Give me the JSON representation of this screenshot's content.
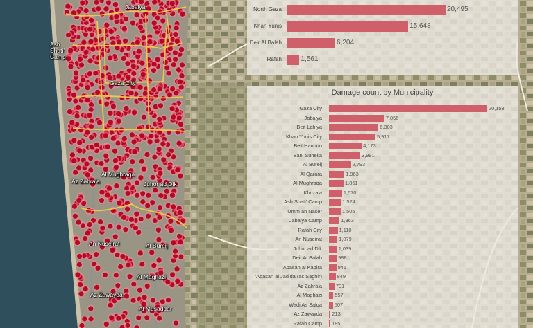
{
  "map": {
    "place_labels": [
      {
        "name": "Jabalya"
      },
      {
        "name": "Ash Shati' Camp"
      },
      {
        "name": "Gaza City"
      },
      {
        "name": "Al Mughraqa"
      },
      {
        "name": "Az Zahra'a"
      },
      {
        "name": "Juhor ad Dik"
      },
      {
        "name": "An Nuseirat"
      },
      {
        "name": "Al Bureij"
      },
      {
        "name": "Al Maghazi"
      },
      {
        "name": "Az Zawayda"
      },
      {
        "name": "Al Musaddar"
      }
    ],
    "colors": {
      "damage_dot": "#b0001a",
      "damage_halo": "#f08a9a",
      "boundary": "#f2c94c",
      "sea": "#2f4f5c"
    }
  },
  "chart_data": [
    {
      "type": "bar",
      "title": "",
      "categories": [
        "North Gaza",
        "Khan Yunis",
        "Deir Al Balah",
        "Rafah"
      ],
      "values": [
        20495,
        15648,
        6204,
        1561
      ],
      "value_labels": [
        "20,495",
        "15,648",
        "6,204",
        "1,561"
      ],
      "orientation": "horizontal",
      "bar_color": "#cf5f68"
    },
    {
      "type": "bar",
      "title": "Damage count by Municipality",
      "categories": [
        "Gaza City",
        "Jabalya",
        "Beit Lahiya",
        "Khan Yunis City",
        "Beit Hanoun",
        "Bani Suhella",
        "Al Bureij",
        "Al Qarara",
        "Al Mughraqa",
        "Khuza'a",
        "Ash Shati' Camp",
        "Umm an Naser",
        "Jabalya Camp",
        "Rafah City",
        "An Nuseirat",
        "Juhor ad Dik",
        "Deir Al Balah",
        "'Abasan al Kabira",
        "'Abasan al Jadida (as Saghir)",
        "Az Zahra'a",
        "Al Maghazi",
        "Wadi As Salqa",
        "Az Zawayda",
        "Rafah Camp"
      ],
      "values": [
        20153,
        7056,
        6303,
        5917,
        4173,
        3991,
        2793,
        1963,
        1861,
        1670,
        1524,
        1505,
        1363,
        1110,
        1079,
        1039,
        988,
        941,
        849,
        701,
        557,
        507,
        213,
        185
      ],
      "value_labels": [
        "20,153",
        "7,056",
        "6,303",
        "5,917",
        "4,173",
        "3,991",
        "2,793",
        "1,963",
        "1,861",
        "1,670",
        "1,524",
        "1,505",
        "1,363",
        "1,110",
        "1,079",
        "1,039",
        "988",
        "941",
        "849",
        "701",
        "557",
        "507",
        "213",
        "185"
      ],
      "orientation": "horizontal",
      "bar_color": "#cf5f68"
    }
  ]
}
